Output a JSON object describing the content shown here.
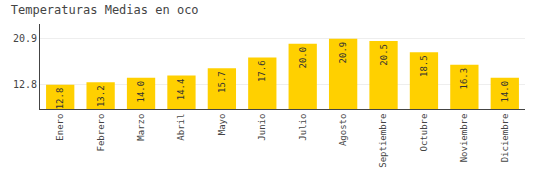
{
  "chart_data": {
    "type": "bar",
    "title": "Temperaturas Medias en oco",
    "categories": [
      "Enero",
      "Febrero",
      "Marzo",
      "Abril",
      "Mayo",
      "Junio",
      "Julio",
      "Agosto",
      "Septiembre",
      "Octubre",
      "Noviembre",
      "Diciembre"
    ],
    "values": [
      12.8,
      13.2,
      14.0,
      14.4,
      15.7,
      17.6,
      20.0,
      20.9,
      20.5,
      18.5,
      16.3,
      14.0
    ],
    "value_labels": [
      "12.8",
      "13.2",
      "14.0",
      "14.4",
      "15.7",
      "17.6",
      "20.0",
      "20.9",
      "20.5",
      "18.5",
      "16.3",
      "14.0"
    ],
    "color": "#FFD000",
    "ylim": [
      8.5,
      23.5
    ],
    "yticks": [
      12.8,
      20.9
    ],
    "grid": true,
    "data_labels": true
  }
}
